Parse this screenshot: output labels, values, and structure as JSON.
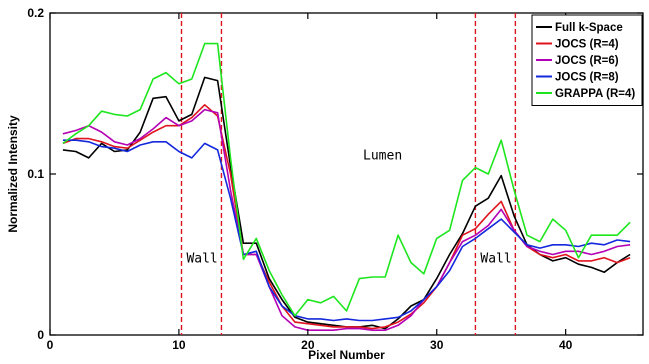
{
  "chart_data": {
    "type": "line",
    "xlabel": "Pixel Number",
    "ylabel": "Normalized Intensity",
    "xlim": [
      0,
      46
    ],
    "ylim": [
      0,
      0.2
    ],
    "x_ticks": [
      0,
      10,
      20,
      30,
      40
    ],
    "x_tick_labels": [
      "0",
      "10",
      "20",
      "30",
      "40"
    ],
    "y_ticks": [
      0,
      0.1,
      0.2
    ],
    "y_tick_labels": [
      "0",
      "0.1",
      "0.2"
    ],
    "grid": false,
    "legend_position": "top-right",
    "vlines": [
      {
        "x": 10.2,
        "color": "#e0141e"
      },
      {
        "x": 13.3,
        "color": "#e0141e"
      },
      {
        "x": 33.0,
        "color": "#e0141e"
      },
      {
        "x": 36.1,
        "color": "#e0141e"
      }
    ],
    "annotations": [
      {
        "text": "Lumen",
        "x": 25.8,
        "y": 0.109
      },
      {
        "text": "Wall",
        "x": 11.8,
        "y": 0.045
      },
      {
        "text": "Wall",
        "x": 34.6,
        "y": 0.045
      }
    ],
    "x": [
      1,
      2,
      3,
      4,
      5,
      6,
      7,
      8,
      9,
      10,
      11,
      12,
      13,
      14,
      15,
      16,
      17,
      18,
      19,
      20,
      21,
      22,
      23,
      24,
      25,
      26,
      27,
      28,
      29,
      30,
      31,
      32,
      33,
      34,
      35,
      36,
      37,
      38,
      39,
      40,
      41,
      42,
      43,
      44,
      45
    ],
    "series": [
      {
        "name": "Full k-Space",
        "color": "#000000",
        "values": [
          0.115,
          0.114,
          0.11,
          0.119,
          0.114,
          0.115,
          0.126,
          0.147,
          0.148,
          0.133,
          0.137,
          0.16,
          0.158,
          0.105,
          0.057,
          0.057,
          0.035,
          0.022,
          0.011,
          0.008,
          0.007,
          0.006,
          0.005,
          0.005,
          0.006,
          0.004,
          0.01,
          0.018,
          0.022,
          0.035,
          0.05,
          0.063,
          0.08,
          0.085,
          0.099,
          0.074,
          0.056,
          0.05,
          0.046,
          0.048,
          0.044,
          0.042,
          0.039,
          0.045,
          0.05
        ]
      },
      {
        "name": "JOCS (R=4)",
        "color": "#e0141e",
        "values": [
          0.119,
          0.122,
          0.122,
          0.12,
          0.117,
          0.116,
          0.121,
          0.126,
          0.13,
          0.13,
          0.135,
          0.143,
          0.136,
          0.1,
          0.05,
          0.05,
          0.033,
          0.018,
          0.008,
          0.007,
          0.006,
          0.005,
          0.005,
          0.005,
          0.004,
          0.005,
          0.008,
          0.013,
          0.02,
          0.03,
          0.045,
          0.062,
          0.066,
          0.075,
          0.083,
          0.065,
          0.055,
          0.05,
          0.048,
          0.05,
          0.046,
          0.046,
          0.048,
          0.045,
          0.048
        ]
      },
      {
        "name": "JOCS (R=6)",
        "color": "#b400b4",
        "values": [
          0.125,
          0.127,
          0.13,
          0.126,
          0.12,
          0.118,
          0.122,
          0.128,
          0.135,
          0.13,
          0.133,
          0.14,
          0.138,
          0.09,
          0.05,
          0.05,
          0.03,
          0.012,
          0.005,
          0.003,
          0.003,
          0.003,
          0.004,
          0.004,
          0.003,
          0.003,
          0.006,
          0.012,
          0.022,
          0.03,
          0.045,
          0.058,
          0.062,
          0.068,
          0.078,
          0.065,
          0.055,
          0.052,
          0.05,
          0.052,
          0.052,
          0.05,
          0.052,
          0.055,
          0.056
        ]
      },
      {
        "name": "JOCS (R=8)",
        "color": "#1428dc",
        "values": [
          0.121,
          0.121,
          0.12,
          0.117,
          0.116,
          0.114,
          0.118,
          0.12,
          0.12,
          0.114,
          0.11,
          0.119,
          0.115,
          0.085,
          0.05,
          0.052,
          0.03,
          0.018,
          0.012,
          0.01,
          0.01,
          0.009,
          0.01,
          0.009,
          0.009,
          0.01,
          0.011,
          0.015,
          0.022,
          0.03,
          0.04,
          0.055,
          0.06,
          0.066,
          0.072,
          0.064,
          0.056,
          0.054,
          0.056,
          0.056,
          0.055,
          0.057,
          0.056,
          0.059,
          0.058
        ]
      },
      {
        "name": "GRAPPA (R=4)",
        "color": "#1ee61e",
        "values": [
          0.119,
          0.125,
          0.13,
          0.139,
          0.137,
          0.136,
          0.14,
          0.159,
          0.163,
          0.156,
          0.159,
          0.181,
          0.181,
          0.11,
          0.047,
          0.06,
          0.04,
          0.025,
          0.012,
          0.022,
          0.02,
          0.024,
          0.015,
          0.035,
          0.036,
          0.036,
          0.062,
          0.045,
          0.038,
          0.06,
          0.065,
          0.096,
          0.104,
          0.1,
          0.121,
          0.09,
          0.062,
          0.058,
          0.072,
          0.065,
          0.048,
          0.062,
          0.062,
          0.062,
          0.07
        ]
      }
    ]
  }
}
